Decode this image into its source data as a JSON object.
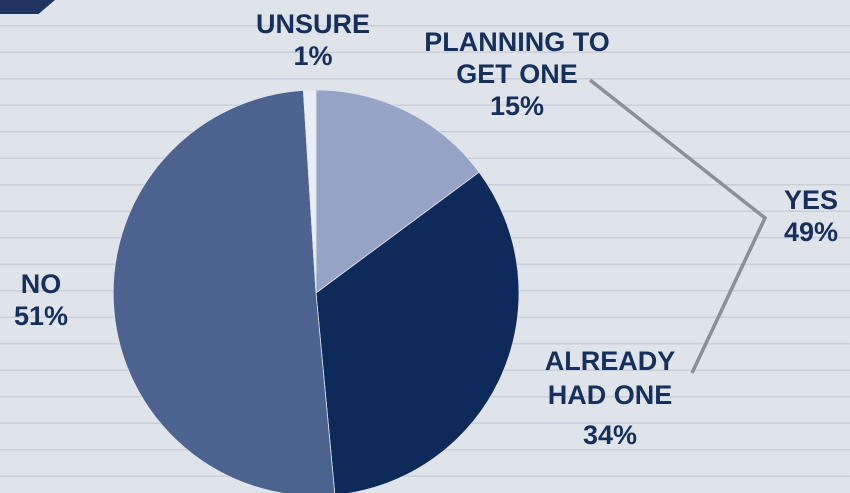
{
  "chart_data": {
    "type": "pie",
    "slices": [
      {
        "label_lines": [
          "PLANNING TO",
          "GET ONE"
        ],
        "value_label": "15%",
        "value": 15,
        "color": "#95a4c4"
      },
      {
        "label_lines": [
          "ALREADY",
          "HAD ONE"
        ],
        "value_label": "34%",
        "value": 34,
        "color": "#0e2a5a"
      },
      {
        "label_lines": [
          "NO"
        ],
        "value_label": "51%",
        "value": 51,
        "color": "#4c6390"
      },
      {
        "label_lines": [
          "UNSURE"
        ],
        "value_label": "1%",
        "value": 1,
        "color": "#e9edf4"
      }
    ],
    "group_annotation": {
      "label": "YES",
      "value_label": "49%",
      "value": 49,
      "groups": [
        "PLANNING TO GET ONE",
        "ALREADY HAD ONE"
      ]
    }
  }
}
